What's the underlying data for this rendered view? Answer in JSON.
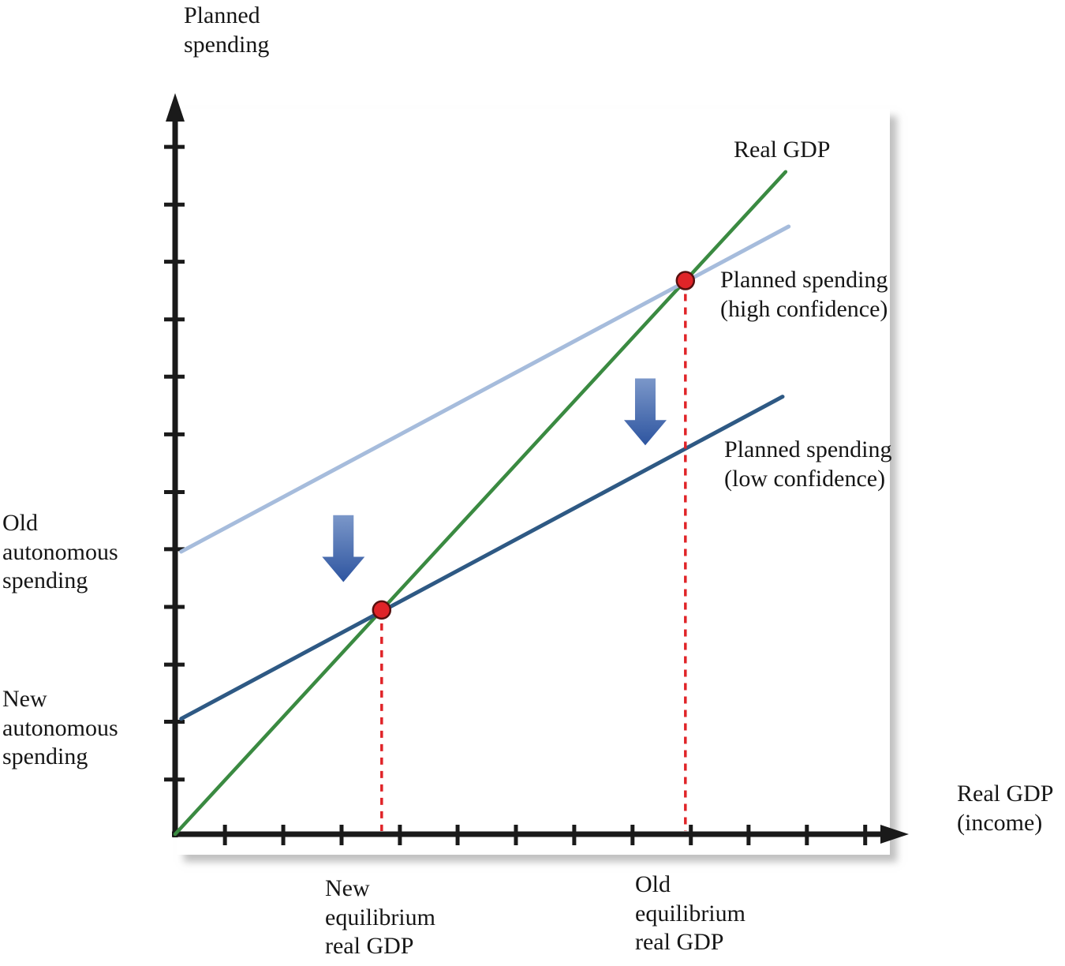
{
  "chart_data": {
    "type": "line",
    "title": "",
    "x_axis_label": "Real GDP\n(income)",
    "y_axis_label": "Planned\nspending",
    "x_range": [
      0,
      12.1
    ],
    "y_range": [
      0,
      12.2
    ],
    "grid": false,
    "legend": "none (lines labeled directly on chart)",
    "x_ticks": [
      0.82,
      1.78,
      2.74,
      3.7,
      4.65,
      5.61,
      6.57,
      7.53,
      8.49,
      9.44,
      10.4,
      11.36
    ],
    "y_ticks": [
      0.9,
      1.85,
      2.79,
      3.74,
      4.69,
      5.63,
      6.58,
      7.53,
      8.47,
      9.42,
      10.36,
      11.31
    ],
    "series": [
      {
        "id": "real-gdp-line",
        "name": "Real GDP",
        "color": "#3a8a41",
        "width": 4.5,
        "points": [
          [
            0,
            0
          ],
          [
            10.05,
            10.9
          ]
        ]
      },
      {
        "id": "planned-spending-high-confidence-line",
        "name": "Planned spending (high confidence)",
        "color": "#a6bcdc",
        "width": 5,
        "points": [
          [
            0.1,
            4.65
          ],
          [
            10.1,
            10.0
          ]
        ]
      },
      {
        "id": "planned-spending-low-confidence-line",
        "name": "Planned spending (low confidence)",
        "color": "#2e5984",
        "width": 5,
        "points": [
          [
            0.1,
            1.9
          ],
          [
            10.0,
            7.2
          ]
        ]
      }
    ],
    "equilibrium_points": [
      {
        "name": "Old equilibrium",
        "x": 8.4,
        "y": 9.11
      },
      {
        "name": "New equilibrium",
        "x": 3.4,
        "y": 3.69
      }
    ],
    "dashed_drop_lines": [
      {
        "x": 8.4,
        "y": 9.11
      },
      {
        "x": 3.4,
        "y": 3.69
      }
    ],
    "shift_arrows": [
      {
        "x": 2.77,
        "y_top": 5.25,
        "y_bottom": 4.15
      },
      {
        "x": 7.74,
        "y_top": 7.5,
        "y_bottom": 6.4
      }
    ],
    "annotations": {
      "real_gdp_line": "Real GDP",
      "high_confidence_line": "Planned spending\n(high confidence)",
      "low_confidence_line": "Planned spending\n(low confidence)",
      "old_autonomous": "Old\nautonomous\nspending",
      "new_autonomous": "New\nautonomous\nspending",
      "new_equilibrium": "New\nequilibrium\nreal GDP",
      "old_equilibrium": "Old\nequilibrium\nreal GDP"
    },
    "colors": {
      "axis": "#1a1a1a",
      "real_gdp_line": "#3a8a41",
      "high_confidence_line": "#a6bcdc",
      "low_confidence_line": "#2e5984",
      "equilibrium_dot": "#e02428",
      "dot_outline": "#55100f",
      "dashed_line": "#e02428",
      "arrow_top": "#7b97c9",
      "arrow_bottom": "#2e55a0"
    }
  }
}
